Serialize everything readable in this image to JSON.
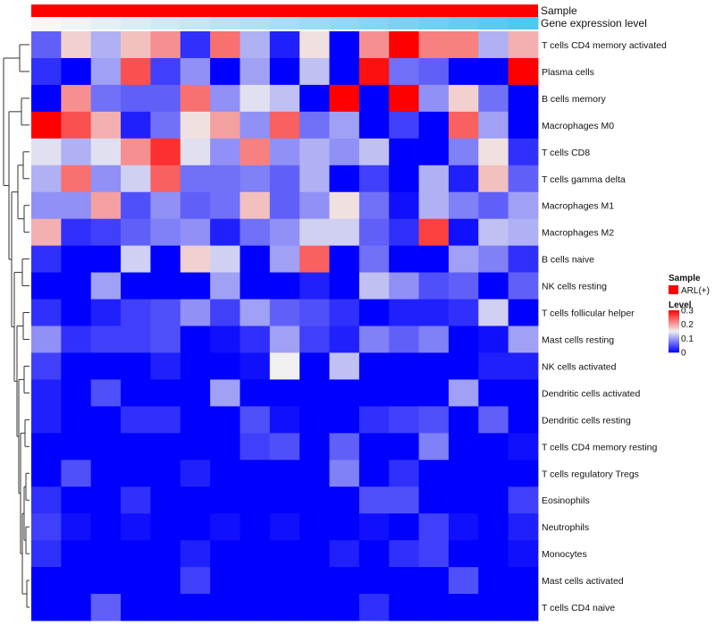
{
  "chart_data": {
    "type": "heatmap",
    "annotation_rows": [
      {
        "label": "Sample",
        "color": "#ff0000"
      },
      {
        "label": "Gene expression level",
        "gradient": [
          "#f7f7f7",
          "#4fc8ee"
        ]
      }
    ],
    "rows": [
      "T cells CD4 memory activated",
      "Plasma cells",
      "B cells memory",
      "Macrophages M0",
      "T cells CD8",
      "T cells gamma delta",
      "Macrophages M1",
      "Macrophages M2",
      "B cells naive",
      "NK cells resting",
      "T cells follicular helper",
      "Mast cells resting",
      "NK cells activated",
      "Dendritic cells activated",
      "Dendritic cells resting",
      "T cells CD4 memory resting",
      "T cells regulatory  Tregs",
      "Eosinophils",
      "Neutrophils",
      "Monocytes",
      "Mast cells activated",
      "T cells CD4 naive"
    ],
    "values": [
      [
        0.06,
        0.17,
        0.11,
        0.18,
        0.21,
        0.03,
        0.23,
        0.11,
        0.02,
        0.16,
        0.0,
        0.21,
        0.3,
        0.22,
        0.22,
        0.11,
        0.19
      ],
      [
        0.03,
        0.0,
        0.1,
        0.25,
        0.04,
        0.09,
        0.0,
        0.1,
        0.0,
        0.12,
        0.0,
        0.29,
        0.07,
        0.06,
        0.0,
        0.0,
        0.3
      ],
      [
        0.0,
        0.21,
        0.07,
        0.06,
        0.06,
        0.23,
        0.09,
        0.14,
        0.12,
        0.0,
        0.3,
        0.0,
        0.3,
        0.09,
        0.17,
        0.07,
        0.0
      ],
      [
        0.3,
        0.25,
        0.19,
        0.02,
        0.07,
        0.16,
        0.2,
        0.09,
        0.24,
        0.07,
        0.1,
        0.0,
        0.04,
        0.0,
        0.24,
        0.1,
        0.0
      ],
      [
        0.14,
        0.11,
        0.14,
        0.21,
        0.27,
        0.14,
        0.09,
        0.22,
        0.09,
        0.11,
        0.09,
        0.12,
        0.0,
        0.0,
        0.08,
        0.16,
        0.03
      ],
      [
        0.11,
        0.23,
        0.09,
        0.13,
        0.24,
        0.07,
        0.07,
        0.08,
        0.06,
        0.11,
        0.0,
        0.04,
        0.0,
        0.11,
        0.02,
        0.18,
        0.06
      ],
      [
        0.09,
        0.09,
        0.2,
        0.05,
        0.09,
        0.06,
        0.07,
        0.18,
        0.06,
        0.09,
        0.16,
        0.07,
        0.01,
        0.11,
        0.08,
        0.06,
        0.1
      ],
      [
        0.19,
        0.03,
        0.04,
        0.06,
        0.08,
        0.09,
        0.02,
        0.07,
        0.09,
        0.13,
        0.13,
        0.06,
        0.03,
        0.26,
        0.01,
        0.12,
        0.11
      ],
      [
        0.03,
        0.0,
        0.0,
        0.13,
        0.0,
        0.17,
        0.13,
        0.0,
        0.1,
        0.24,
        0.0,
        0.07,
        0.0,
        0.0,
        0.1,
        0.08,
        0.03
      ],
      [
        0.0,
        0.0,
        0.1,
        0.0,
        0.0,
        0.0,
        0.1,
        0.0,
        0.0,
        0.02,
        0.0,
        0.12,
        0.09,
        0.05,
        0.06,
        0.0,
        0.06
      ],
      [
        0.03,
        0.0,
        0.02,
        0.04,
        0.05,
        0.09,
        0.04,
        0.1,
        0.06,
        0.05,
        0.03,
        0.0,
        0.02,
        0.02,
        0.03,
        0.13,
        0.0
      ],
      [
        0.09,
        0.03,
        0.04,
        0.04,
        0.05,
        0.0,
        0.01,
        0.03,
        0.1,
        0.04,
        0.02,
        0.08,
        0.06,
        0.08,
        0.0,
        0.01,
        0.1
      ],
      [
        0.04,
        0.0,
        0.0,
        0.0,
        0.02,
        0.0,
        0.0,
        0.01,
        0.15,
        0.0,
        0.12,
        0.0,
        0.0,
        0.0,
        0.0,
        0.02,
        0.02
      ],
      [
        0.02,
        0.0,
        0.05,
        0.0,
        0.0,
        0.0,
        0.1,
        0.0,
        0.0,
        0.0,
        0.0,
        0.0,
        0.0,
        0.0,
        0.1,
        0.0,
        0.0
      ],
      [
        0.02,
        0.0,
        0.0,
        0.03,
        0.03,
        0.0,
        0.0,
        0.05,
        0.01,
        0.0,
        0.0,
        0.03,
        0.04,
        0.05,
        0.0,
        0.06,
        0.0
      ],
      [
        0.0,
        0.0,
        0.0,
        0.0,
        0.0,
        0.0,
        0.0,
        0.04,
        0.05,
        0.0,
        0.06,
        0.0,
        0.0,
        0.08,
        0.0,
        0.0,
        0.01
      ],
      [
        0.0,
        0.05,
        0.0,
        0.0,
        0.0,
        0.02,
        0.0,
        0.0,
        0.0,
        0.0,
        0.08,
        0.0,
        0.03,
        0.0,
        0.0,
        0.0,
        0.0
      ],
      [
        0.03,
        0.0,
        0.0,
        0.03,
        0.0,
        0.0,
        0.0,
        0.0,
        0.0,
        0.0,
        0.0,
        0.05,
        0.05,
        0.0,
        0.0,
        0.0,
        0.04
      ],
      [
        0.04,
        0.01,
        0.0,
        0.01,
        0.0,
        0.0,
        0.01,
        0.0,
        0.01,
        0.0,
        0.0,
        0.01,
        0.0,
        0.04,
        0.01,
        0.0,
        0.02
      ],
      [
        0.03,
        0.0,
        0.0,
        0.0,
        0.0,
        0.02,
        0.0,
        0.0,
        0.0,
        0.0,
        0.02,
        0.0,
        0.03,
        0.04,
        0.0,
        0.0,
        0.01
      ],
      [
        0.0,
        0.0,
        0.0,
        0.0,
        0.0,
        0.04,
        0.0,
        0.0,
        0.0,
        0.0,
        0.0,
        0.0,
        0.0,
        0.0,
        0.05,
        0.0,
        0.0
      ],
      [
        0.0,
        0.0,
        0.06,
        0.0,
        0.0,
        0.0,
        0.0,
        0.0,
        0.0,
        0.0,
        0.0,
        0.03,
        0.0,
        0.0,
        0.0,
        0.0,
        0.0
      ]
    ],
    "color_scale": {
      "min": 0,
      "max": 0.3,
      "low": "#0000ff",
      "mid": "#f0f0f0",
      "high": "#ff0000"
    },
    "legend": {
      "placement": "right",
      "sample_title": "Sample",
      "sample_entry": "ARL(+)",
      "sample_color": "#ff0000",
      "level_title": "Level",
      "level_ticks": [
        0,
        0.1,
        0.2,
        0.3
      ],
      "level_tick_labels": [
        "0",
        "0.1",
        "0.2",
        "0.3"
      ]
    },
    "row_dendrogram": true,
    "grid": false
  }
}
